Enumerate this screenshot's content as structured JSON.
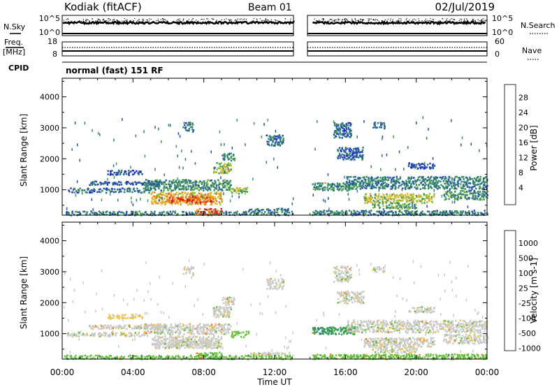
{
  "header": {
    "station": "Kodiak (fitACF)",
    "beam": "Beam 01",
    "date": "02/Jul/2019"
  },
  "top_panels": {
    "nsky_label": "N.Sky",
    "nsearch_label": "N.Search",
    "nsky_ticks": [
      "10^5",
      "10^0"
    ],
    "nsearch_ticks": [
      "10^5",
      "10^0"
    ],
    "freq_label_1": "Freq.",
    "freq_label_2": "[MHz]",
    "freq_ticks": [
      "18",
      "8"
    ],
    "nave_label": "Nave",
    "nave_ticks": [
      "60",
      "0"
    ],
    "cpid_label": "CPID",
    "cpid_value": "normal (fast) 151 RF"
  },
  "chart_data": [
    {
      "type": "heatmap",
      "title": "",
      "xlabel": "Time UT",
      "ylabel": "Slant Range [km]",
      "xlim": [
        "00:00",
        "24:00"
      ],
      "ylim": [
        180,
        4600
      ],
      "x_ticks": [
        "00:00",
        "04:00",
        "08:00",
        "12:00",
        "16:00",
        "20:00",
        "00:00"
      ],
      "y_ticks": [
        1000,
        2000,
        3000,
        4000
      ],
      "data_gap_hours": [
        13.2,
        14.1
      ],
      "colorbar": {
        "label": "Power [dB]",
        "ticks": [
          28,
          24,
          20,
          16,
          12,
          8,
          4
        ],
        "range": [
          0,
          32
        ],
        "colors": [
          "#2020e0",
          "#2050b0",
          "#2d7a70",
          "#3a9a55",
          "#90c030",
          "#f0b020",
          "#f07010",
          "#e01010"
        ]
      },
      "regions": [
        {
          "t": [
            0.1,
            13.0
          ],
          "r": [
            200,
            330
          ],
          "v": 10
        },
        {
          "t": [
            14.1,
            24.0
          ],
          "r": [
            200,
            360
          ],
          "v": 10
        },
        {
          "t": [
            0.2,
            5.0
          ],
          "r": [
            930,
            1080
          ],
          "v": 8
        },
        {
          "t": [
            1.5,
            5.5
          ],
          "r": [
            1180,
            1300
          ],
          "v": 6
        },
        {
          "t": [
            2.5,
            4.5
          ],
          "r": [
            1500,
            1650
          ],
          "v": 6
        },
        {
          "t": [
            4.6,
            9.5
          ],
          "r": [
            1000,
            1350
          ],
          "v": 12
        },
        {
          "t": [
            5.0,
            9.0
          ],
          "r": [
            550,
            950
          ],
          "v": 22
        },
        {
          "t": [
            6.0,
            8.5
          ],
          "r": [
            600,
            800
          ],
          "v": 28
        },
        {
          "t": [
            7.5,
            9.0
          ],
          "r": [
            230,
            420
          ],
          "v": 27
        },
        {
          "t": [
            8.5,
            9.5
          ],
          "r": [
            1550,
            1900
          ],
          "v": 17
        },
        {
          "t": [
            9.0,
            9.7
          ],
          "r": [
            1950,
            2200
          ],
          "v": 12
        },
        {
          "t": [
            9.5,
            10.5
          ],
          "r": [
            900,
            1100
          ],
          "v": 18
        },
        {
          "t": [
            10.5,
            12.8
          ],
          "r": [
            350,
            420
          ],
          "v": 9
        },
        {
          "t": [
            6.8,
            7.4
          ],
          "r": [
            2900,
            3200
          ],
          "v": 8
        },
        {
          "t": [
            11.5,
            12.5
          ],
          "r": [
            2450,
            2800
          ],
          "v": 8
        },
        {
          "t": [
            14.1,
            16.5
          ],
          "r": [
            1000,
            1250
          ],
          "v": 12
        },
        {
          "t": [
            16.0,
            24.0
          ],
          "r": [
            1050,
            1450
          ],
          "v": 10
        },
        {
          "t": [
            17.0,
            21.0
          ],
          "r": [
            600,
            900
          ],
          "v": 19
        },
        {
          "t": [
            17.5,
            20.0
          ],
          "r": [
            400,
            600
          ],
          "v": 14
        },
        {
          "t": [
            15.5,
            17.0
          ],
          "r": [
            2000,
            2400
          ],
          "v": 7
        },
        {
          "t": [
            15.3,
            16.3
          ],
          "r": [
            2700,
            3200
          ],
          "v": 8
        },
        {
          "t": [
            19.5,
            21.0
          ],
          "r": [
            1700,
            1900
          ],
          "v": 6
        },
        {
          "t": [
            17.5,
            18.2
          ],
          "r": [
            3000,
            3200
          ],
          "v": 7
        },
        {
          "t": [
            21.5,
            24.0
          ],
          "r": [
            700,
            1000
          ],
          "v": 12
        }
      ]
    },
    {
      "type": "heatmap",
      "title": "",
      "xlabel": "Time UT",
      "ylabel": "Slant Range [km]",
      "xlim": [
        "00:00",
        "24:00"
      ],
      "ylim": [
        180,
        4600
      ],
      "x_ticks": [
        "00:00",
        "04:00",
        "08:00",
        "12:00",
        "16:00",
        "20:00",
        "00:00"
      ],
      "y_ticks": [
        1000,
        2000,
        3000,
        4000
      ],
      "data_gap_hours": [
        13.2,
        14.1
      ],
      "colorbar": {
        "label": "Velocity [m s-1]",
        "ticks": [
          "1000",
          "500",
          "100",
          "25",
          "-25",
          "-100",
          "-500",
          "-1000"
        ],
        "colors": [
          "#2030d0",
          "#3a6ab0",
          "#2f9a50",
          "#60c030",
          "#c8c8c8",
          "#f0c040",
          "#f08010",
          "#e01010"
        ]
      },
      "regions": [
        {
          "t": [
            0.1,
            13.0
          ],
          "r": [
            200,
            330
          ],
          "c": 3
        },
        {
          "t": [
            14.1,
            24.0
          ],
          "r": [
            200,
            360
          ],
          "c": 3
        },
        {
          "t": [
            0.2,
            5.0
          ],
          "r": [
            930,
            1080
          ],
          "c": 4
        },
        {
          "t": [
            1.5,
            5.5
          ],
          "r": [
            1180,
            1300
          ],
          "c": 4
        },
        {
          "t": [
            2.5,
            4.5
          ],
          "r": [
            1500,
            1650
          ],
          "c": 5
        },
        {
          "t": [
            4.6,
            9.5
          ],
          "r": [
            1000,
            1350
          ],
          "c": 4
        },
        {
          "t": [
            5.0,
            9.0
          ],
          "r": [
            550,
            950
          ],
          "c": 4
        },
        {
          "t": [
            6.0,
            8.5
          ],
          "r": [
            600,
            800
          ],
          "c": 4
        },
        {
          "t": [
            7.5,
            9.0
          ],
          "r": [
            230,
            420
          ],
          "c": 3
        },
        {
          "t": [
            8.5,
            9.5
          ],
          "r": [
            1550,
            1900
          ],
          "c": 4
        },
        {
          "t": [
            9.0,
            9.7
          ],
          "r": [
            1950,
            2200
          ],
          "c": 4
        },
        {
          "t": [
            9.5,
            10.5
          ],
          "r": [
            900,
            1100
          ],
          "c": 3
        },
        {
          "t": [
            10.5,
            12.8
          ],
          "r": [
            350,
            420
          ],
          "c": 4
        },
        {
          "t": [
            6.8,
            7.4
          ],
          "r": [
            2900,
            3200
          ],
          "c": 4
        },
        {
          "t": [
            11.5,
            12.5
          ],
          "r": [
            2450,
            2800
          ],
          "c": 4
        },
        {
          "t": [
            14.1,
            16.5
          ],
          "r": [
            1000,
            1250
          ],
          "c": 2
        },
        {
          "t": [
            16.0,
            24.0
          ],
          "r": [
            1050,
            1450
          ],
          "c": 4
        },
        {
          "t": [
            17.0,
            21.0
          ],
          "r": [
            600,
            900
          ],
          "c": 4
        },
        {
          "t": [
            17.5,
            20.0
          ],
          "r": [
            400,
            600
          ],
          "c": 4
        },
        {
          "t": [
            15.5,
            17.0
          ],
          "r": [
            2000,
            2400
          ],
          "c": 4
        },
        {
          "t": [
            15.3,
            16.3
          ],
          "r": [
            2700,
            3200
          ],
          "c": 4
        },
        {
          "t": [
            19.5,
            21.0
          ],
          "r": [
            1700,
            1900
          ],
          "c": 4
        },
        {
          "t": [
            17.5,
            18.2
          ],
          "r": [
            3000,
            3200
          ],
          "c": 4
        },
        {
          "t": [
            21.5,
            24.0
          ],
          "r": [
            700,
            1000
          ],
          "c": 4
        }
      ]
    }
  ]
}
